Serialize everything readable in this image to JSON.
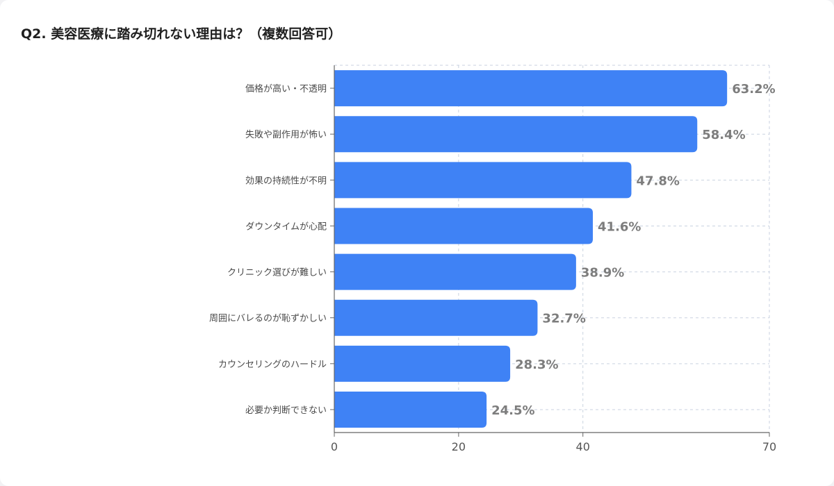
{
  "title": "Q2. 美容医療に踏み切れない理由は？（複数回答可）",
  "chart_data": {
    "type": "bar",
    "orientation": "horizontal",
    "categories": [
      "価格が高い・不透明",
      "失敗や副作用が怖い",
      "効果の持続性が不明",
      "ダウンタイムが心配",
      "クリニック選びが難しい",
      "周囲にバレるのが恥ずかしい",
      "カウンセリングのハードル",
      "必要か判断できない"
    ],
    "values": [
      63.2,
      58.4,
      47.8,
      41.6,
      38.9,
      32.7,
      28.3,
      24.5
    ],
    "value_labels": [
      "63.2%",
      "58.4%",
      "47.8%",
      "41.6%",
      "38.9%",
      "32.7%",
      "28.3%",
      "24.5%"
    ],
    "xlim": [
      0,
      70
    ],
    "xticks": [
      0,
      20,
      40,
      70
    ],
    "xtick_labels": [
      "0",
      "20",
      "40",
      "70"
    ],
    "grid": true,
    "bar_color": "#3f82f5"
  }
}
